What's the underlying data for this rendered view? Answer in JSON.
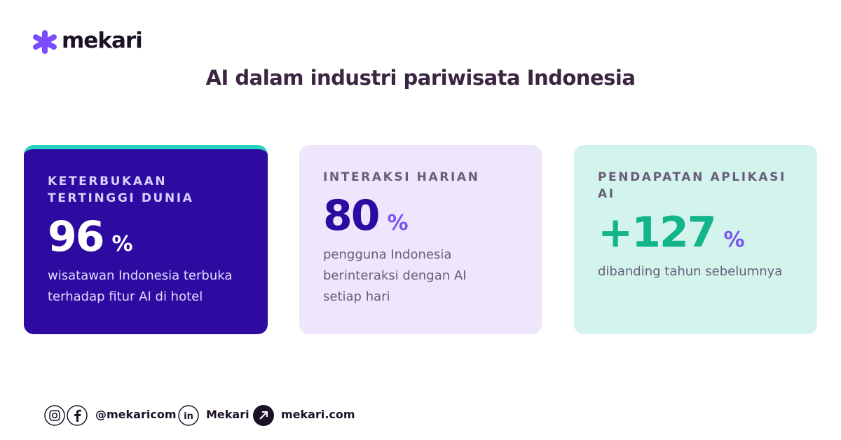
{
  "header": {
    "logo": "mekari",
    "title": "AI dalam industri pariwisata Indonesia"
  },
  "cards": [
    {
      "label_lines": [
        "KETERBUKAAN",
        "TERTINGGI DUNIA"
      ],
      "value": "96",
      "unit": "%",
      "description_lines": [
        "wisatawan Indonesia terbuka",
        "terhadap fitur AI di hotel"
      ]
    },
    {
      "label_lines": [
        "INTERAKSI HARIAN"
      ],
      "value": "80",
      "unit": "%",
      "description_lines": [
        "pengguna Indonesia",
        "berinteraksi dengan AI",
        "setiap hari"
      ]
    },
    {
      "label_lines": [
        "PENDAPATAN APLIKASI",
        "AI"
      ],
      "value": "+127",
      "unit": "%",
      "description_lines": [
        "dibanding tahun sebelumnya"
      ]
    }
  ],
  "footer": {
    "handle": "@mekaricom",
    "linkedin": "Mekari",
    "website": "mekari.com"
  }
}
